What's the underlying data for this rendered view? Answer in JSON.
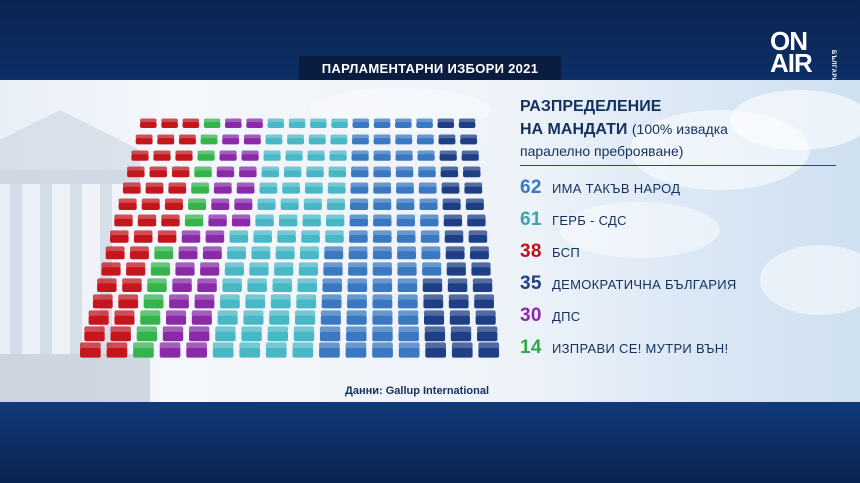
{
  "header": {
    "title": "ПАРЛАМЕНТАРНИ ИЗБОРИ 2021"
  },
  "logo": {
    "line1": "ON",
    "line2": "AIR",
    "side": "БЪЛГАРИЯ"
  },
  "legend": {
    "title_line1": "РАЗПРЕДЕЛЕНИЕ",
    "title_line2": "НА МАНДАТИ",
    "title_note": "(100% извадка",
    "subtitle": "паралелно преброяване)"
  },
  "source": "Данни: Gallup International",
  "chart_data": {
    "type": "bar",
    "title": "РАЗПРЕДЕЛЕНИЕ НА МАНДАТИ",
    "subtitle": "(100% извадка паралелно преброяване)",
    "total_seats": 240,
    "categories": [
      "ИМА ТАКЪВ НАРОД",
      "ГЕРБ - СДС",
      "БСП",
      "ДЕМОКРАТИЧНА БЪЛГАРИЯ",
      "ДПС",
      "ИЗПРАВИ СЕ! МУТРИ ВЪН!"
    ],
    "values": [
      62,
      61,
      38,
      35,
      30,
      14
    ],
    "colors": [
      "#3a78c2",
      "#48b8c6",
      "#c4161c",
      "#1e3f86",
      "#8a2aa8",
      "#36b44c"
    ],
    "label_colors": [
      "#3a78c2",
      "#3aa3ae",
      "#b8141a",
      "#1e3f86",
      "#8a2aa8",
      "#2ea84a"
    ],
    "seat_order": [
      2,
      5,
      4,
      1,
      0,
      3
    ],
    "legend_position": "right"
  }
}
